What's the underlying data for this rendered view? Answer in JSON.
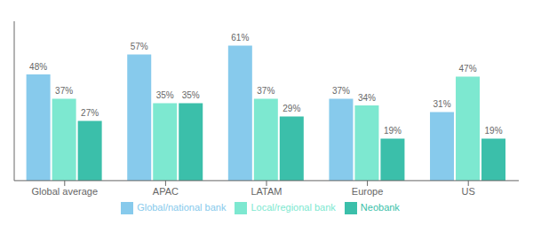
{
  "chart_data": {
    "type": "bar",
    "categories": [
      "Global average",
      "APAC",
      "LATAM",
      "Europe",
      "US"
    ],
    "series": [
      {
        "name": "Global/national bank",
        "color": "#87CAEC",
        "values": [
          48,
          57,
          61,
          37,
          31
        ],
        "value_labels": [
          "48%",
          "57%",
          "61%",
          "37%",
          "31%"
        ]
      },
      {
        "name": "Local/regional bank",
        "color": "#7DE8D0",
        "values": [
          37,
          35,
          37,
          34,
          47
        ],
        "value_labels": [
          "37%",
          "35%",
          "37%",
          "34%",
          "47%"
        ]
      },
      {
        "name": "Neobank",
        "color": "#3BBFAA",
        "values": [
          27,
          35,
          29,
          19,
          19
        ],
        "value_labels": [
          "27%",
          "35%",
          "29%",
          "19%",
          "19%"
        ]
      }
    ],
    "ylim": [
      0,
      72
    ],
    "yticks": [],
    "grid": false,
    "legend": "bottom",
    "data_labels": true,
    "tick_labels": "x"
  }
}
